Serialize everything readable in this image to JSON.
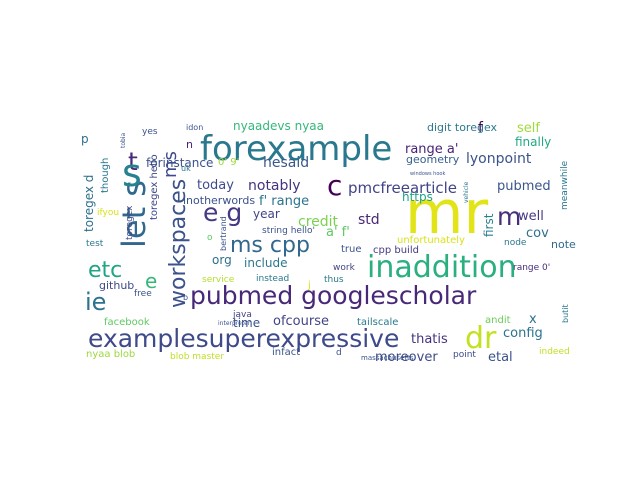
{
  "word_cloud": {
    "words": [
      {
        "text": "mr",
        "color": "#e2e418"
      },
      {
        "text": "examplesuperexpressive",
        "color": "#3e4a89"
      },
      {
        "text": "pubmed googlescholar",
        "color": "#482878"
      },
      {
        "text": "forexample",
        "color": "#2a788e"
      },
      {
        "text": "inaddition",
        "color": "#2ab07f"
      },
      {
        "text": "workspaces",
        "color": "#3b528b"
      },
      {
        "text": "let s",
        "color": "#31688e"
      },
      {
        "text": "dr",
        "color": "#c5e021"
      },
      {
        "text": "etc",
        "color": "#20a486"
      },
      {
        "text": "ms cpp",
        "color": "#31688e"
      },
      {
        "text": "ie",
        "color": "#2c728e"
      },
      {
        "text": "e g",
        "color": "#443983"
      },
      {
        "text": "t",
        "color": "#482878"
      },
      {
        "text": "c",
        "color": "#440154"
      },
      {
        "text": "m",
        "color": "#472d7b"
      },
      {
        "text": "e",
        "color": "#35b779"
      },
      {
        "text": "s",
        "color": "#26828e"
      },
      {
        "text": "ms",
        "color": "#3e4a89"
      },
      {
        "text": "pmcfreearticle",
        "color": "#414487"
      },
      {
        "text": "pubmed",
        "color": "#39568c"
      },
      {
        "text": "lyonpoint",
        "color": "#3b528b"
      },
      {
        "text": "notably",
        "color": "#46327e"
      },
      {
        "text": "hesaid",
        "color": "#38588c"
      },
      {
        "text": "forinstance",
        "color": "#3b528b"
      },
      {
        "text": "today",
        "color": "#3e4c8a"
      },
      {
        "text": "range a'",
        "color": "#482475"
      },
      {
        "text": "a' f'",
        "color": "#5ec962"
      },
      {
        "text": "f' range",
        "color": "#2c738e"
      },
      {
        "text": "credit",
        "color": "#7ad151"
      },
      {
        "text": "std",
        "color": "#482878"
      },
      {
        "text": "year",
        "color": "#414487"
      },
      {
        "text": "include",
        "color": "#2a788e"
      },
      {
        "text": "org",
        "color": "#2e6e8e"
      },
      {
        "text": "time",
        "color": "#3b528b"
      },
      {
        "text": "ofcourse",
        "color": "#414487"
      },
      {
        "text": "thatis",
        "color": "#46337e"
      },
      {
        "text": "moreover",
        "color": "#3e4a89"
      },
      {
        "text": "config",
        "color": "#2c738e"
      },
      {
        "text": "etal",
        "color": "#3b528b"
      },
      {
        "text": "cov",
        "color": "#2d708e"
      },
      {
        "text": "well",
        "color": "#443983"
      },
      {
        "text": "self",
        "color": "#9fda3a"
      },
      {
        "text": "finally",
        "color": "#22a884"
      },
      {
        "text": "first",
        "color": "#277f8e"
      },
      {
        "text": "note",
        "color": "#31688e"
      },
      {
        "text": "x",
        "color": "#2c728e"
      },
      {
        "text": "f",
        "color": "#440154"
      },
      {
        "text": "n",
        "color": "#482576"
      },
      {
        "text": "p",
        "color": "#2d708e"
      },
      {
        "text": "o",
        "color": "#5ec962"
      },
      {
        "text": "toregex d",
        "color": "#2d708e"
      },
      {
        "text": "toregex hello",
        "color": "#404688"
      },
      {
        "text": "toregex",
        "color": "#3e4a89"
      },
      {
        "text": "github",
        "color": "#3e4a89"
      },
      {
        "text": "nyaadevs nyaa",
        "color": "#35b779"
      },
      {
        "text": "digit toregex",
        "color": "#2a788e"
      },
      {
        "text": "geometry",
        "color": "#355f8d"
      },
      {
        "text": "inotherwords",
        "color": "#3b528b"
      },
      {
        "text": "https",
        "color": "#1fa187"
      },
      {
        "text": "unfortunately",
        "color": "#d8e219"
      },
      {
        "text": "true",
        "color": "#3b528b"
      },
      {
        "text": "cpp build",
        "color": "#443a83"
      },
      {
        "text": "tailscale",
        "color": "#2a788e"
      },
      {
        "text": "work",
        "color": "#414487"
      },
      {
        "text": "thus",
        "color": "#2a788e"
      },
      {
        "text": "andit",
        "color": "#6ccd5a"
      },
      {
        "text": "range 0'",
        "color": "#472c7a"
      },
      {
        "text": "node",
        "color": "#2a788e"
      },
      {
        "text": "butit",
        "color": "#2a788e"
      },
      {
        "text": "meanwhile",
        "color": "#2a788e"
      },
      {
        "text": "indeed",
        "color": "#c2df23"
      },
      {
        "text": "point",
        "color": "#3e4a89"
      },
      {
        "text": "infact",
        "color": "#3b528b"
      },
      {
        "text": "d",
        "color": "#3b528b"
      },
      {
        "text": "massachusetts",
        "color": "#3b528b"
      },
      {
        "text": "nyaa blob",
        "color": "#9bd93c"
      },
      {
        "text": "blob master",
        "color": "#bddf26"
      },
      {
        "text": "facebook",
        "color": "#5ec962"
      },
      {
        "text": "free",
        "color": "#3b528b"
      },
      {
        "text": "java",
        "color": "#414487"
      },
      {
        "text": "interpreter",
        "color": "#3b528b"
      },
      {
        "text": "service",
        "color": "#b5de2b"
      },
      {
        "text": "instead",
        "color": "#2a788e"
      },
      {
        "text": "string hello'",
        "color": "#3b528b"
      },
      {
        "text": "test",
        "color": "#2a788e"
      },
      {
        "text": "ifyou",
        "color": "#d8e219"
      },
      {
        "text": "though",
        "color": "#2a788e"
      },
      {
        "text": "yes",
        "color": "#3b528b"
      },
      {
        "text": "idon",
        "color": "#3b528b"
      },
      {
        "text": "0' 9'",
        "color": "#9fda3a"
      },
      {
        "text": "uk",
        "color": "#2a788e"
      },
      {
        "text": "tobia",
        "color": "#3b528b"
      },
      {
        "text": "bertrand",
        "color": "#3b528b"
      },
      {
        "text": "b",
        "color": "#3b528b"
      },
      {
        "text": "vehicle",
        "color": "#2a788e"
      },
      {
        "text": "windows hook",
        "color": "#3b528b"
      },
      {
        "text": "j",
        "color": "#d8e219"
      }
    ]
  }
}
